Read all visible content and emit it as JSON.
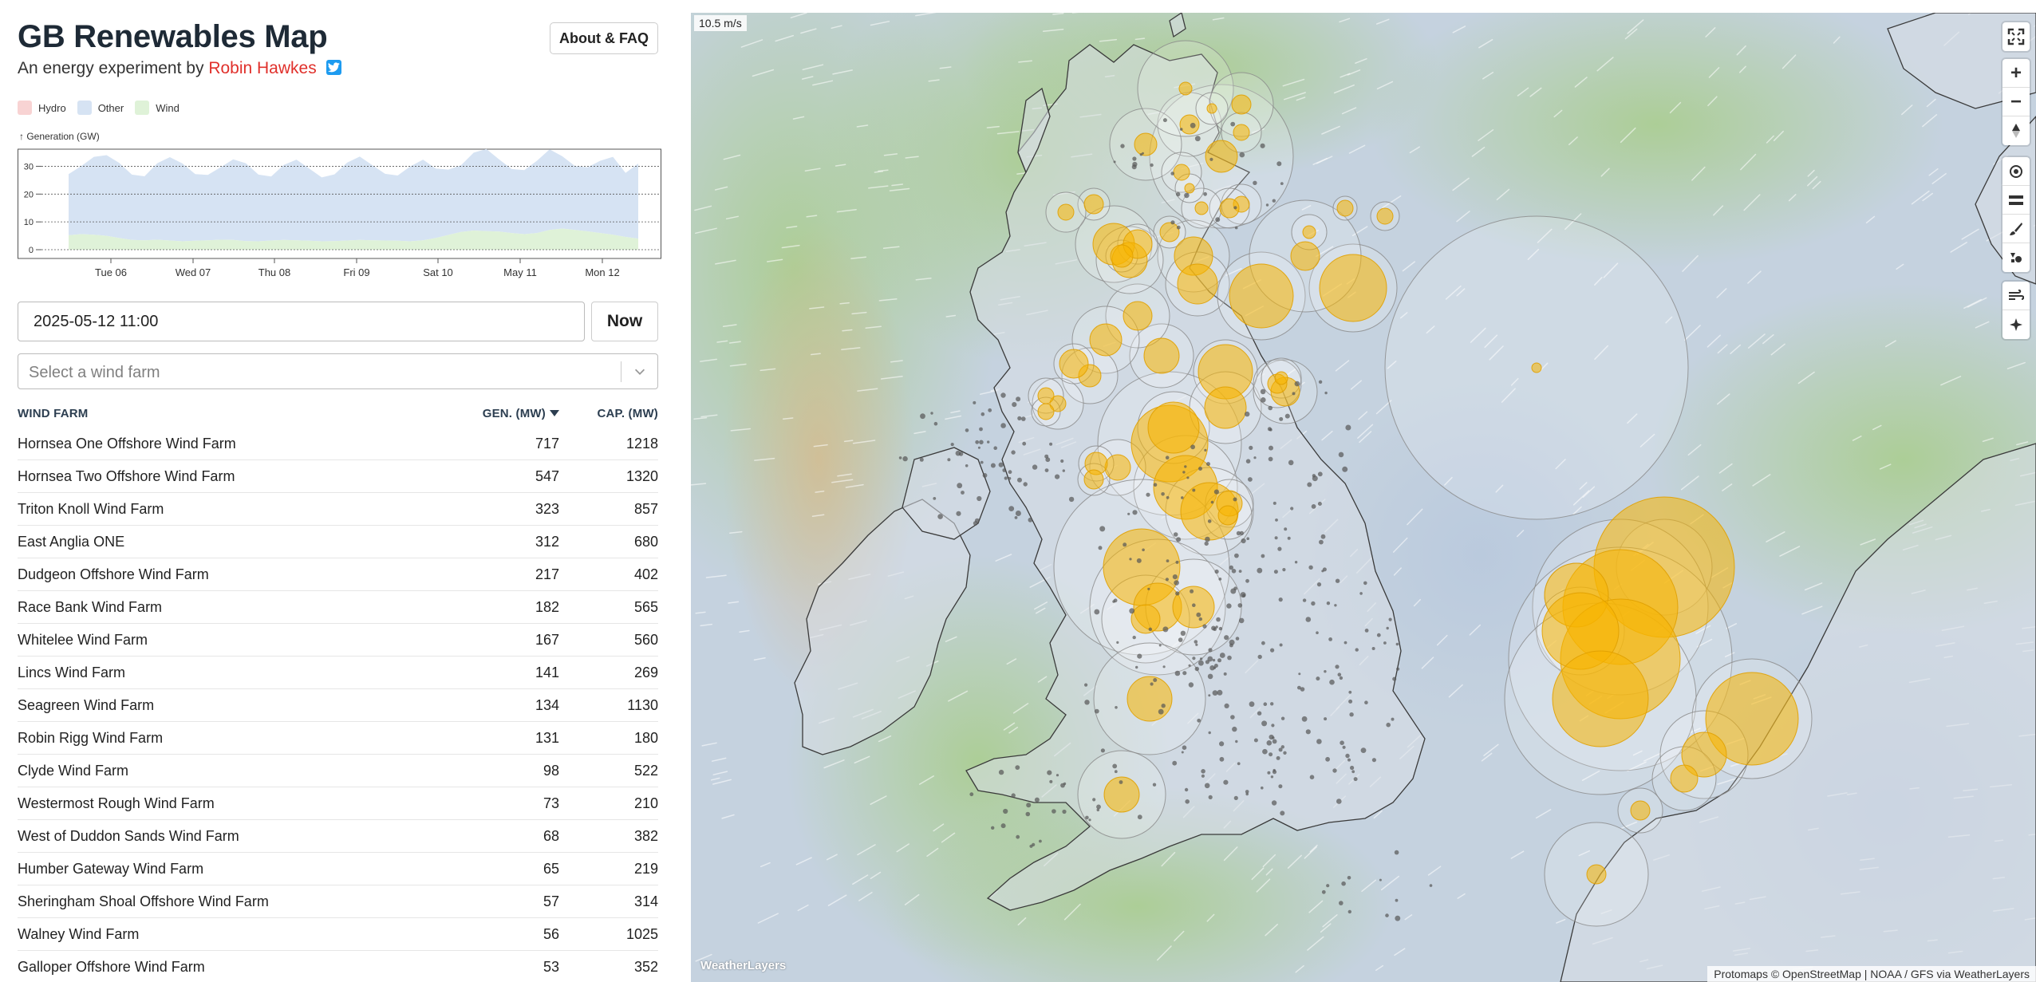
{
  "header": {
    "title": "GB Renewables Map",
    "subtitle_prefix": "An energy experiment by",
    "author": "Robin Hawkes",
    "about_label": "About & FAQ"
  },
  "legend": [
    {
      "label": "Hydro",
      "color": "#f8d3d3"
    },
    {
      "label": "Other",
      "color": "#d6e3f3"
    },
    {
      "label": "Wind",
      "color": "#dff2d8"
    }
  ],
  "chart_data": {
    "type": "area",
    "ylabel": "↑ Generation (GW)",
    "yticks": [
      0,
      10,
      20,
      30
    ],
    "ylim": [
      0,
      33
    ],
    "xticks": [
      "Tue 06",
      "Wed 07",
      "Thu 08",
      "Fri 09",
      "Sat 10",
      "May 11",
      "Mon 12"
    ],
    "grid": true,
    "series": [
      {
        "name": "Wind",
        "color": "#dff2d8",
        "values": [
          5.2,
          5.6,
          5.4,
          5.0,
          4.2,
          3.5,
          3.4,
          3.6,
          3.3,
          3.0,
          3.2,
          3.4,
          3.6,
          3.5,
          3.1,
          3.0,
          3.3,
          3.5,
          3.4,
          3.2,
          3.0,
          3.1,
          3.3,
          3.5,
          3.4,
          3.3,
          3.2,
          3.0,
          3.4,
          4.2,
          5.3,
          6.4,
          6.9,
          6.7,
          6.5,
          6.0,
          5.6,
          6.0,
          7.1,
          7.6,
          7.1,
          6.6,
          6.0,
          5.4,
          4.6,
          4.0
        ]
      },
      {
        "name": "Other",
        "color": "#d6e3f3",
        "values": [
          22,
          24.5,
          28,
          29,
          27,
          23.5,
          23,
          27.5,
          30,
          28,
          24,
          23.5,
          26,
          29,
          28,
          24,
          23,
          27,
          29,
          26,
          23,
          24,
          28,
          30,
          27,
          24,
          23.5,
          27,
          29,
          25,
          23.5,
          24,
          28,
          29.5,
          26,
          23,
          23,
          26,
          29,
          26,
          23,
          23,
          26,
          28,
          23,
          27
        ]
      }
    ]
  },
  "controls": {
    "datetime_value": "2025-05-12 11:00",
    "now_label": "Now",
    "farm_select_placeholder": "Select a wind farm"
  },
  "table": {
    "headers": {
      "name": "WIND FARM",
      "gen": "GEN. (MW)",
      "cap": "CAP. (MW)"
    },
    "rows": [
      {
        "name": "Hornsea One Offshore Wind Farm",
        "gen": "717",
        "cap": "1218"
      },
      {
        "name": "Hornsea Two Offshore Wind Farm",
        "gen": "547",
        "cap": "1320"
      },
      {
        "name": "Triton Knoll Wind Farm",
        "gen": "323",
        "cap": "857"
      },
      {
        "name": "East Anglia ONE",
        "gen": "312",
        "cap": "680"
      },
      {
        "name": "Dudgeon Offshore Wind Farm",
        "gen": "217",
        "cap": "402"
      },
      {
        "name": "Race Bank Wind Farm",
        "gen": "182",
        "cap": "565"
      },
      {
        "name": "Whitelee Wind Farm",
        "gen": "167",
        "cap": "560"
      },
      {
        "name": "Lincs Wind Farm",
        "gen": "141",
        "cap": "269"
      },
      {
        "name": "Seagreen Wind Farm",
        "gen": "134",
        "cap": "1130"
      },
      {
        "name": "Robin Rigg Wind Farm",
        "gen": "131",
        "cap": "180"
      },
      {
        "name": "Clyde Wind Farm",
        "gen": "98",
        "cap": "522"
      },
      {
        "name": "Westermost Rough Wind Farm",
        "gen": "73",
        "cap": "210"
      },
      {
        "name": "West of Duddon Sands Wind Farm",
        "gen": "68",
        "cap": "382"
      },
      {
        "name": "Humber Gateway Wind Farm",
        "gen": "65",
        "cap": "219"
      },
      {
        "name": "Sheringham Shoal Offshore Wind Farm",
        "gen": "57",
        "cap": "314"
      },
      {
        "name": "Walney Wind Farm",
        "gen": "56",
        "cap": "1025"
      },
      {
        "name": "Galloper Offshore Wind Farm",
        "gen": "53",
        "cap": "352"
      }
    ]
  },
  "map": {
    "wind_speed": "10.5 m/s",
    "attribution": "Protomaps © OpenStreetMap | NOAA / GFS via WeatherLayers",
    "logo": "WeatherLayers",
    "controls": [
      {
        "group": 1,
        "items": [
          "fullscreen-icon"
        ]
      },
      {
        "group": 2,
        "items": [
          "zoom-in-icon",
          "zoom-out-icon",
          "compass-icon"
        ]
      },
      {
        "group": 3,
        "items": [
          "locate-icon",
          "layers-icon",
          "brush-icon",
          "shapes-icon"
        ]
      },
      {
        "group": 4,
        "items": [
          "wind-icon",
          "settings-icon"
        ]
      }
    ]
  }
}
